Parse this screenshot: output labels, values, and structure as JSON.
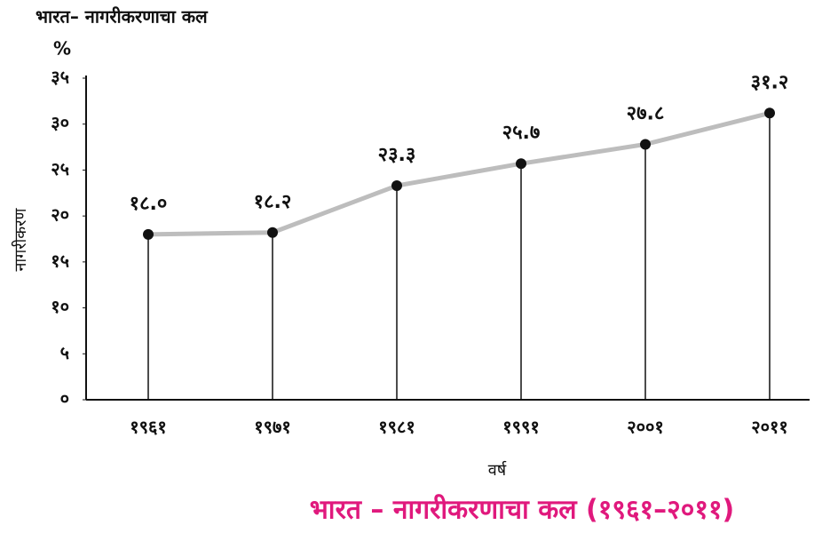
{
  "chart_data": {
    "type": "line",
    "title": "भारत– नागरीकरणाचा कल",
    "y_unit": "%",
    "y_label": "नागरीकरण",
    "x_label": "वर्ष",
    "caption": "भारत – नागरीकरणाचा कल (१९६१–२०११)",
    "categories": [
      "१९६१",
      "१९७१",
      "१९८१",
      "१९९१",
      "२००१",
      "२०११"
    ],
    "values": [
      18.0,
      18.2,
      23.3,
      25.7,
      27.8,
      31.2
    ],
    "value_labels": [
      "१८.०",
      "१८.२",
      "२३.३",
      "२५.७",
      "२७.८",
      "३१.२"
    ],
    "color": "#bdbdbd",
    "marker_color": "#111111",
    "caption_color": "#e0197d",
    "ylim": [
      0,
      35
    ],
    "yticks": [
      {
        "value": 0,
        "label": "०"
      },
      {
        "value": 5,
        "label": "५"
      },
      {
        "value": 10,
        "label": "१०"
      },
      {
        "value": 15,
        "label": "१५"
      },
      {
        "value": 20,
        "label": "२०"
      },
      {
        "value": 25,
        "label": "२५"
      },
      {
        "value": 30,
        "label": "३०"
      },
      {
        "value": 35,
        "label": "३५"
      }
    ],
    "drop_lines": true
  }
}
